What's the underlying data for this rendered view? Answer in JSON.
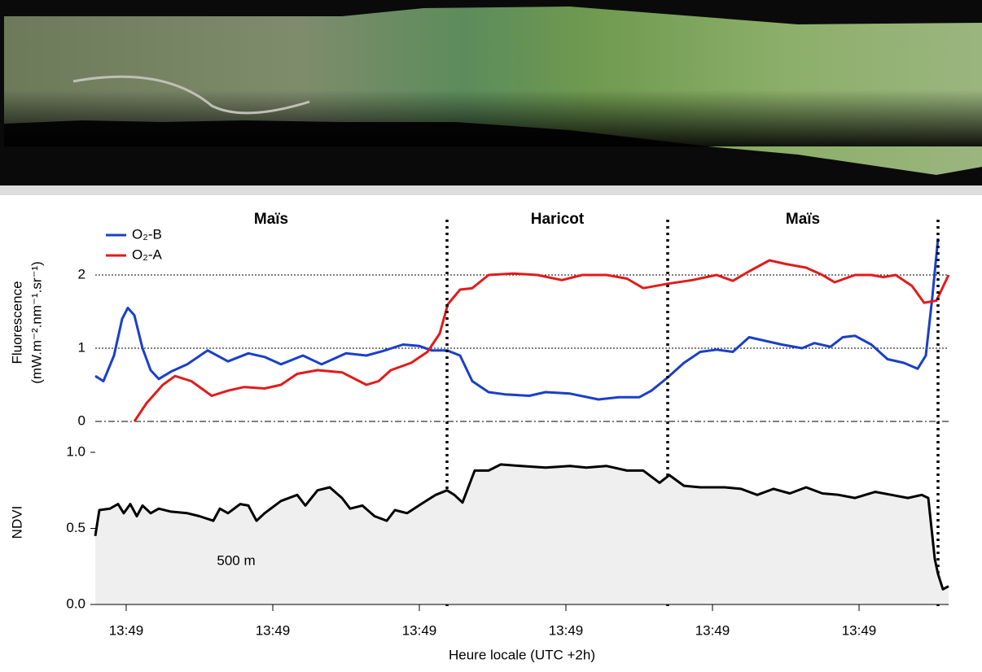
{
  "chart_data": [
    {
      "type": "line",
      "ylabel": "Fluorescence",
      "ylabel_units": "(mW.m⁻².nm⁻¹.sr⁻¹)",
      "xlim": [
        0,
        1048
      ],
      "ylim": [
        0,
        2.7
      ],
      "yticks": [
        0,
        1,
        2
      ],
      "grid": true,
      "legend": "top-left",
      "regions": [
        "Maïs",
        "Haricot",
        "Maïs"
      ],
      "dividers": [
        432,
        703,
        1035
      ],
      "series": [
        {
          "name": "O₂-B",
          "color": "#1a3fc8",
          "x": [
            0,
            10,
            23,
            33,
            40,
            48,
            58,
            68,
            78,
            93,
            113,
            138,
            163,
            188,
            208,
            228,
            255,
            278,
            308,
            333,
            353,
            378,
            398,
            413,
            432,
            448,
            463,
            483,
            503,
            533,
            553,
            583,
            618,
            643,
            668,
            683,
            703,
            723,
            743,
            763,
            783,
            803,
            823,
            843,
            868,
            883,
            903,
            918,
            933,
            953,
            973,
            993,
            1010,
            1020,
            1028,
            1035
          ],
          "values": [
            0.62,
            0.55,
            0.9,
            1.4,
            1.55,
            1.45,
            1.0,
            0.7,
            0.58,
            0.68,
            0.78,
            0.97,
            0.82,
            0.93,
            0.88,
            0.78,
            0.9,
            0.78,
            0.93,
            0.9,
            0.96,
            1.05,
            1.03,
            0.97,
            0.97,
            0.9,
            0.55,
            0.4,
            0.37,
            0.35,
            0.4,
            0.38,
            0.3,
            0.33,
            0.33,
            0.42,
            0.6,
            0.8,
            0.95,
            0.98,
            0.95,
            1.15,
            1.1,
            1.05,
            1.0,
            1.07,
            1.02,
            1.15,
            1.17,
            1.05,
            0.85,
            0.8,
            0.72,
            0.9,
            1.7,
            2.5
          ]
        },
        {
          "name": "O₂-A",
          "color": "#e21b1b",
          "x": [
            48,
            63,
            83,
            98,
            118,
            143,
            163,
            183,
            208,
            228,
            248,
            273,
            303,
            333,
            348,
            363,
            388,
            408,
            423,
            433,
            448,
            463,
            483,
            513,
            543,
            573,
            598,
            628,
            653,
            673,
            703,
            733,
            763,
            783,
            803,
            828,
            848,
            873,
            893,
            908,
            933,
            953,
            968,
            983,
            1003,
            1018,
            1033,
            1048
          ],
          "values": [
            0,
            0.25,
            0.5,
            0.62,
            0.55,
            0.35,
            0.42,
            0.47,
            0.45,
            0.5,
            0.65,
            0.7,
            0.67,
            0.5,
            0.55,
            0.7,
            0.8,
            0.95,
            1.2,
            1.6,
            1.8,
            1.82,
            2.0,
            2.02,
            2.0,
            1.93,
            2.0,
            2.0,
            1.95,
            1.82,
            1.88,
            1.93,
            2.0,
            1.92,
            2.05,
            2.2,
            2.15,
            2.1,
            2.0,
            1.9,
            2.0,
            2.0,
            1.97,
            2.0,
            1.85,
            1.62,
            1.65,
            2.0
          ]
        }
      ]
    },
    {
      "type": "area",
      "ylabel": "NDVI",
      "xlabel": "Heure locale (UTC +2h)",
      "annotation": "500 m",
      "xlim": [
        0,
        1048
      ],
      "ylim": [
        0,
        1.08
      ],
      "yticks": [
        {
          "value": 0,
          "label": "0.0"
        },
        0.5,
        {
          "value": 1,
          "label": "1.0"
        }
      ],
      "xticks": [
        {
          "value": 38,
          "label": "13:49"
        },
        {
          "value": 218,
          "label": "13:49"
        },
        {
          "value": 398,
          "label": "13:49"
        },
        {
          "value": 578,
          "label": "13:49"
        },
        {
          "value": 758,
          "label": "13:49"
        },
        {
          "value": 938,
          "label": "13:49"
        }
      ],
      "series": [
        {
          "color": "#000000",
          "fill": "#efefef",
          "x": [
            0,
            5,
            18,
            28,
            35,
            43,
            51,
            58,
            68,
            78,
            93,
            113,
            128,
            145,
            153,
            163,
            178,
            188,
            198,
            208,
            228,
            248,
            258,
            273,
            288,
            303,
            313,
            328,
            343,
            358,
            368,
            383,
            403,
            418,
            432,
            441,
            451,
            466,
            483,
            498,
            523,
            553,
            583,
            603,
            628,
            653,
            673,
            693,
            705,
            723,
            743,
            773,
            793,
            813,
            833,
            853,
            873,
            893,
            913,
            933,
            958,
            978,
            998,
            1015,
            1023,
            1031,
            1035,
            1041,
            1048
          ],
          "values": [
            0.45,
            0.62,
            0.63,
            0.66,
            0.6,
            0.66,
            0.58,
            0.65,
            0.6,
            0.63,
            0.61,
            0.6,
            0.58,
            0.55,
            0.63,
            0.6,
            0.66,
            0.65,
            0.55,
            0.6,
            0.68,
            0.72,
            0.65,
            0.75,
            0.77,
            0.7,
            0.63,
            0.65,
            0.58,
            0.55,
            0.62,
            0.6,
            0.67,
            0.72,
            0.75,
            0.72,
            0.67,
            0.88,
            0.88,
            0.92,
            0.91,
            0.9,
            0.91,
            0.9,
            0.91,
            0.88,
            0.88,
            0.8,
            0.85,
            0.78,
            0.77,
            0.77,
            0.76,
            0.72,
            0.76,
            0.73,
            0.77,
            0.73,
            0.72,
            0.7,
            0.74,
            0.72,
            0.7,
            0.72,
            0.7,
            0.3,
            0.2,
            0.1,
            0.12
          ]
        }
      ]
    }
  ]
}
